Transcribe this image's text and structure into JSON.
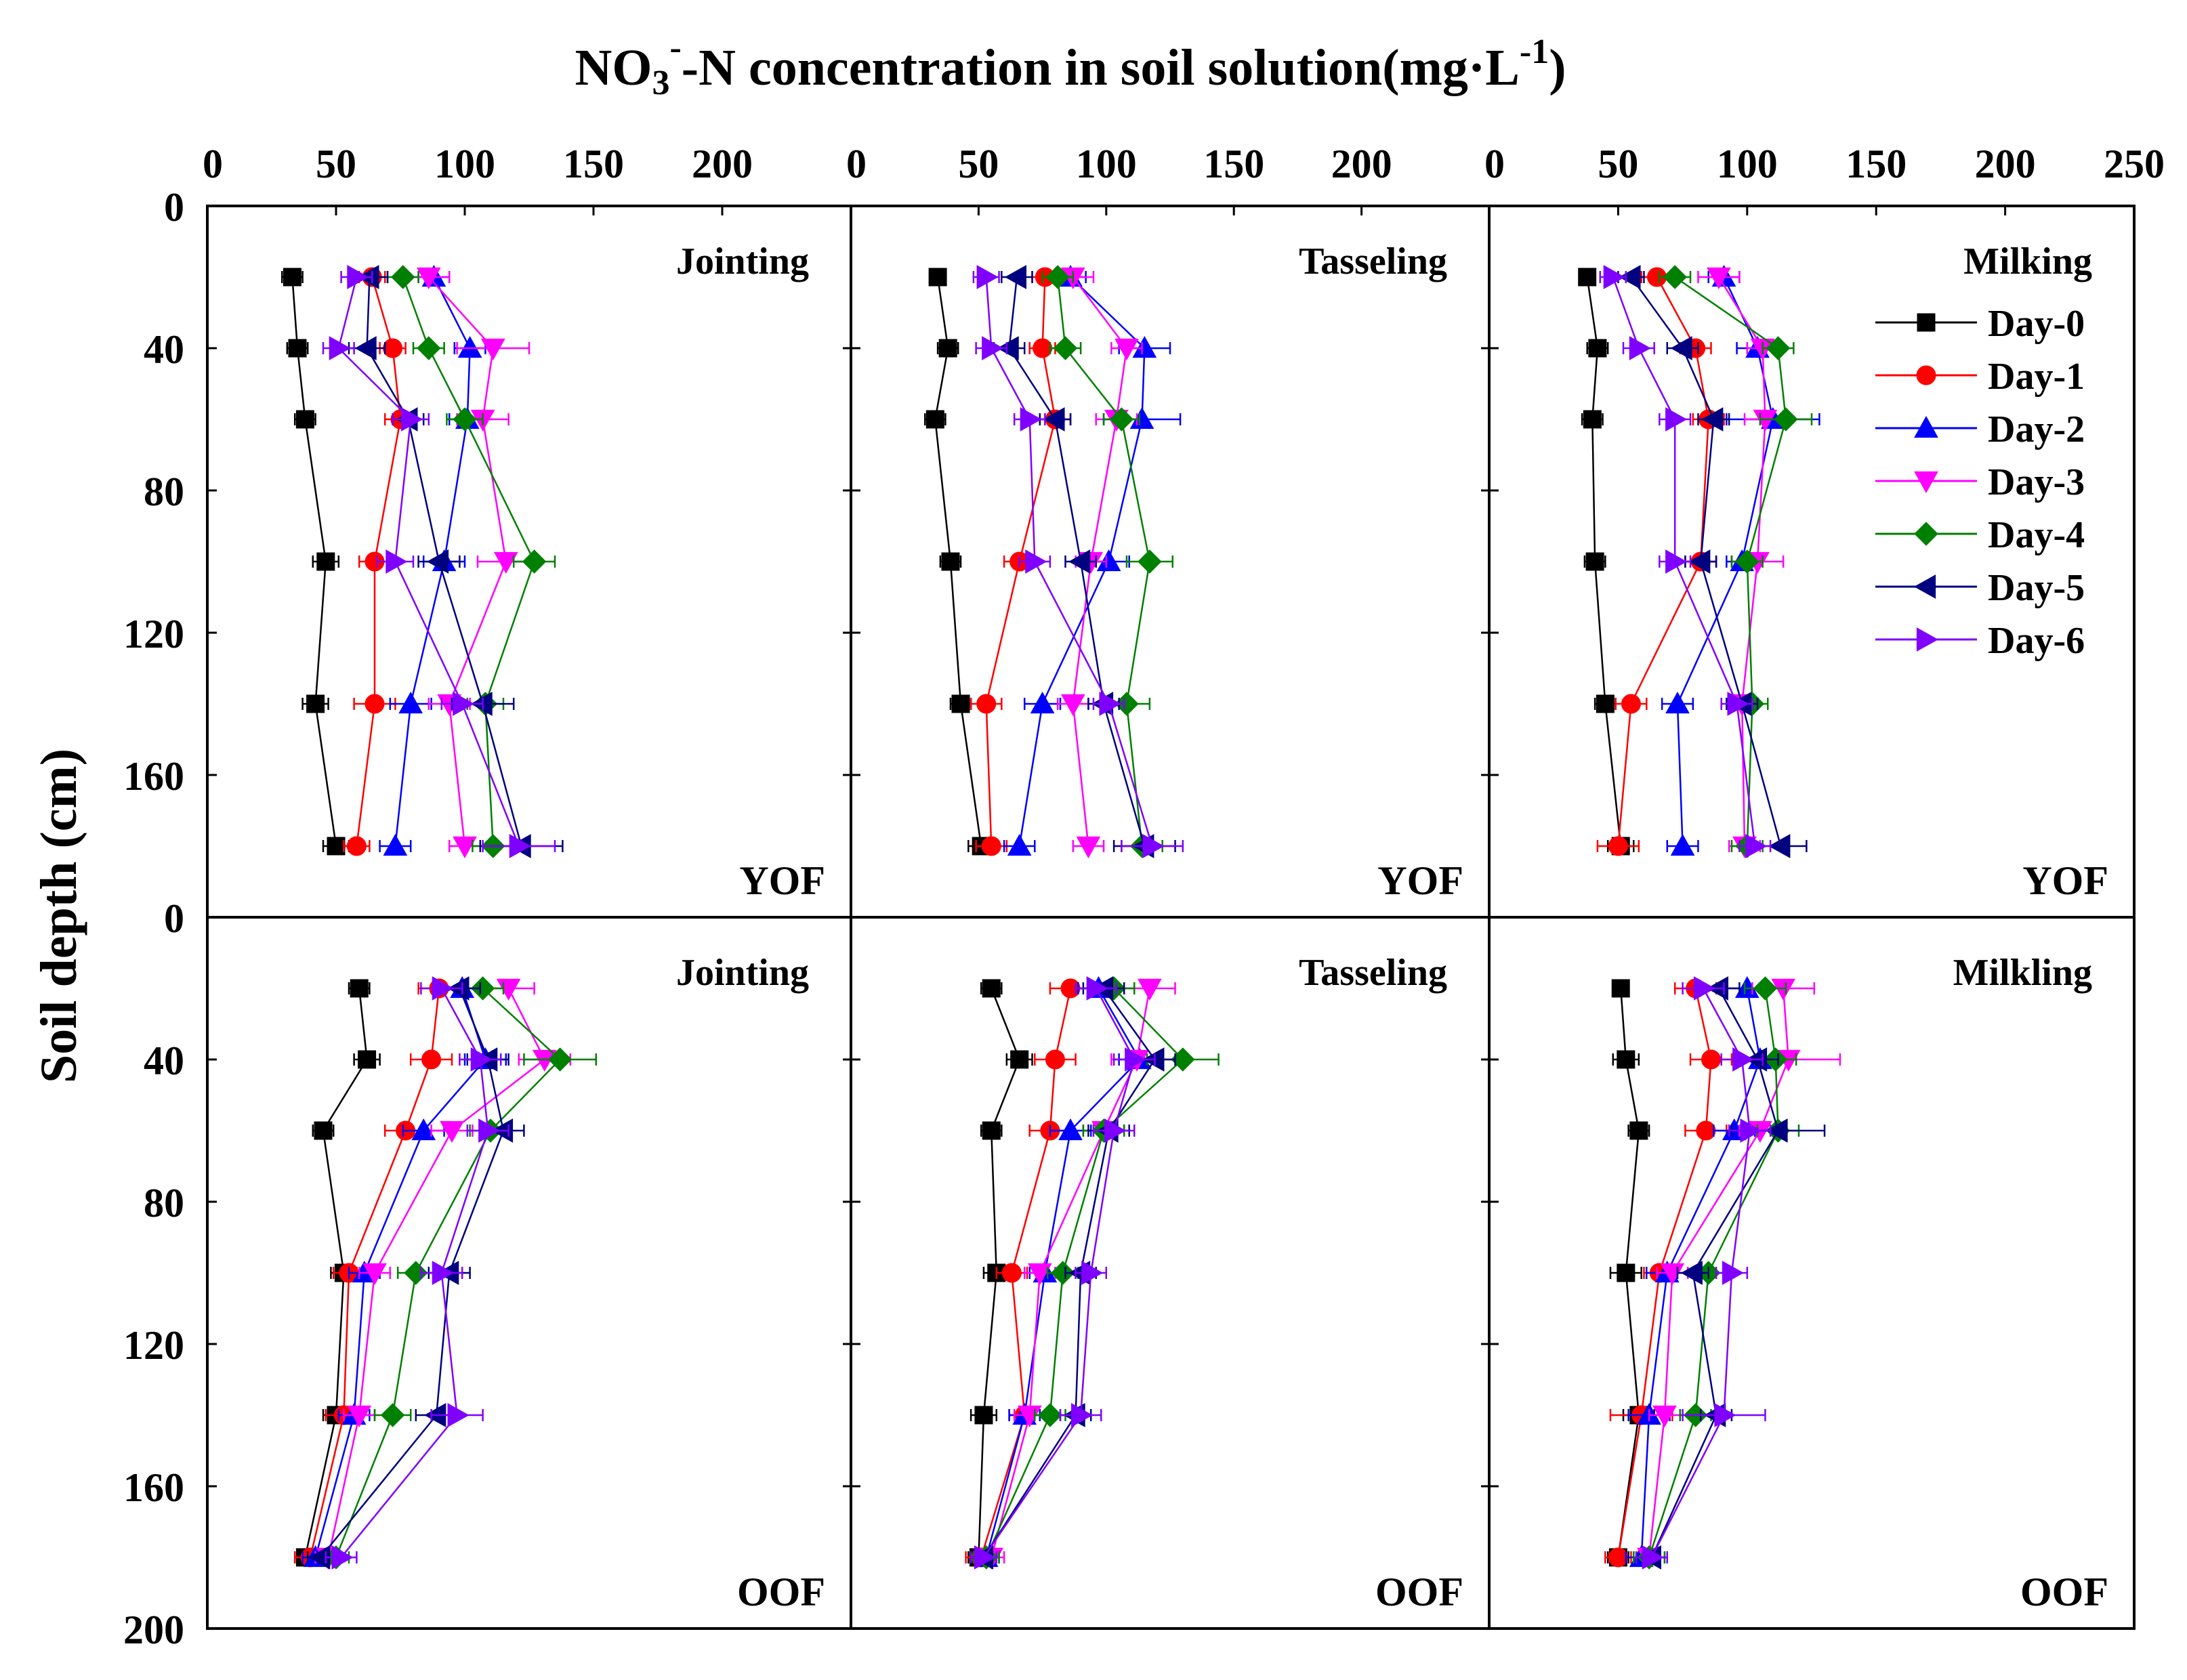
{
  "chart_data": {
    "type": "line",
    "title": "NO3--N concentration in soil solution(mg·L-1)",
    "title_parts": {
      "a": "NO",
      "sub": "3",
      "sup1": "-",
      "b": "-N concentration in soil solution(mg·L",
      "sup2": "-1",
      "c": ")"
    },
    "ylabel": "Soil depth  (cm)",
    "orientation": "x is concentration on top axis, y is depth increasing downward",
    "x_ticks": [
      [
        "0",
        "50",
        "100",
        "150",
        "200"
      ],
      [
        "0",
        "50",
        "100",
        "150",
        "200"
      ],
      [
        "0",
        "50",
        "100",
        "150",
        "200",
        "250"
      ]
    ],
    "xlims": [
      [
        0,
        250
      ],
      [
        0,
        250
      ],
      [
        0,
        250
      ]
    ],
    "y_ticks": [
      "0",
      "40",
      "80",
      "120",
      "160",
      "200"
    ],
    "ylim": [
      0,
      200
    ],
    "depths": [
      20,
      40,
      60,
      100,
      140,
      180
    ],
    "series_names": [
      "Day-0",
      "Day-1",
      "Day-2",
      "Day-3",
      "Day-4",
      "Day-5",
      "Day-6"
    ],
    "series_colors": [
      "#000000",
      "#ff0000",
      "#0000ff",
      "#ff00ff",
      "#008000",
      "#000080",
      "#8000ff"
    ],
    "series_markers": [
      "square",
      "circle",
      "triangle-up",
      "triangle-down",
      "diamond",
      "triangle-left",
      "triangle-right"
    ],
    "panels": [
      {
        "stage": "Jointing",
        "treatment": "YOF",
        "series": [
          {
            "name": "Day-0",
            "values": [
              33,
              35,
              38,
              46,
              42,
              50
            ],
            "errors": [
              4,
              4,
              4,
              5,
              5,
              5
            ]
          },
          {
            "name": "Day-1",
            "values": [
              64,
              72,
              75,
              65,
              65,
              58
            ],
            "errors": [
              5,
              5,
              6,
              6,
              8,
              5
            ]
          },
          {
            "name": "Day-2",
            "values": [
              88,
              102,
              101,
              92,
              79,
              73
            ],
            "errors": [
              6,
              6,
              7,
              8,
              8,
              6
            ]
          },
          {
            "name": "Day-3",
            "values": [
              86,
              111,
              107,
              116,
              94,
              100
            ],
            "errors": [
              8,
              14,
              10,
              11,
              8,
              6
            ]
          },
          {
            "name": "Day-4",
            "values": [
              76,
              86,
              100,
              127,
              108,
              111
            ],
            "errors": [
              6,
              6,
              7,
              8,
              7,
              8
            ]
          },
          {
            "name": "Day-5",
            "values": [
              63,
              62,
              78,
              90,
              107,
              122
            ],
            "errors": [
              7,
              7,
              6,
              8,
              12,
              16
            ]
          },
          {
            "name": "Day-6",
            "values": [
              58,
              51,
              79,
              73,
              99,
              121
            ],
            "errors": [
              6,
              6,
              7,
              7,
              8,
              14
            ]
          }
        ]
      },
      {
        "stage": "Tasseling",
        "treatment": "YOF",
        "series": [
          {
            "name": "Day-0",
            "values": [
              34,
              38,
              33,
              39,
              43,
              51
            ],
            "errors": [
              3,
              4,
              4,
              4,
              4,
              5
            ]
          },
          {
            "name": "Day-1",
            "values": [
              76,
              75,
              80,
              66,
              53,
              55
            ],
            "errors": [
              5,
              5,
              6,
              6,
              6,
              6
            ]
          },
          {
            "name": "Day-2",
            "values": [
              86,
              115,
              114,
              101,
              75,
              66
            ],
            "errors": [
              6,
              10,
              15,
              8,
              7,
              6
            ]
          },
          {
            "name": "Day-3",
            "values": [
              87,
              108,
              104,
              94,
              87,
              93
            ],
            "errors": [
              8,
              6,
              8,
              6,
              6,
              6
            ]
          },
          {
            "name": "Day-4",
            "values": [
              81,
              84,
              106,
              117,
              108,
              114
            ],
            "errors": [
              6,
              6,
              7,
              9,
              9,
              8
            ]
          },
          {
            "name": "Day-5",
            "values": [
              65,
              62,
              80,
              90,
              99,
              115
            ],
            "errors": [
              6,
              6,
              6,
              6,
              6,
              12
            ]
          },
          {
            "name": "Day-6",
            "values": [
              53,
              55,
              70,
              72,
              101,
              118
            ],
            "errors": [
              5,
              6,
              6,
              6,
              6,
              12
            ]
          }
        ]
      },
      {
        "stage": "Milking",
        "treatment": "YOF",
        "series": [
          {
            "name": "Day-0",
            "values": [
              38,
              42,
              40,
              41,
              45,
              51
            ],
            "errors": [
              3,
              4,
              4,
              4,
              4,
              5
            ]
          },
          {
            "name": "Day-1",
            "values": [
              65,
              80,
              85,
              82,
              55,
              50
            ],
            "errors": [
              6,
              6,
              6,
              6,
              6,
              8
            ]
          },
          {
            "name": "Day-2",
            "values": [
              91,
              104,
              110,
              98,
              73,
              75
            ],
            "errors": [
              6,
              8,
              18,
              6,
              6,
              6
            ]
          },
          {
            "name": "Day-3",
            "values": [
              89,
              106,
              107,
              104,
              98,
              99
            ],
            "errors": [
              8,
              6,
              8,
              10,
              6,
              6
            ]
          },
          {
            "name": "Day-4",
            "values": [
              72,
              112,
              115,
              100,
              102,
              100
            ],
            "errors": [
              6,
              6,
              10,
              6,
              6,
              6
            ]
          },
          {
            "name": "Day-5",
            "values": [
              55,
              75,
              87,
              82,
              98,
              113
            ],
            "errors": [
              5,
              6,
              6,
              6,
              6,
              10
            ]
          },
          {
            "name": "Day-6",
            "values": [
              48,
              58,
              72,
              72,
              96,
              103
            ],
            "errors": [
              5,
              6,
              6,
              6,
              6,
              6
            ]
          }
        ]
      },
      {
        "stage": "Jointing",
        "treatment": "OOF",
        "series": [
          {
            "name": "Day-0",
            "values": [
              59,
              62,
              45,
              53,
              50,
              38
            ],
            "errors": [
              4,
              5,
              4,
              5,
              5,
              4
            ]
          },
          {
            "name": "Day-1",
            "values": [
              90,
              87,
              77,
              55,
              53,
              40
            ],
            "errors": [
              8,
              8,
              8,
              6,
              7,
              6
            ]
          },
          {
            "name": "Day-2",
            "values": [
              99,
              108,
              84,
              61,
              57,
              42
            ],
            "errors": [
              8,
              8,
              8,
              6,
              6,
              5
            ]
          },
          {
            "name": "Day-3",
            "values": [
              117,
              131,
              95,
              65,
              59,
              47
            ],
            "errors": [
              10,
              10,
              8,
              6,
              6,
              5
            ]
          },
          {
            "name": "Day-4",
            "values": [
              107,
              137,
              110,
              81,
              72,
              50
            ],
            "errors": [
              8,
              14,
              8,
              7,
              7,
              5
            ]
          },
          {
            "name": "Day-5",
            "values": [
              98,
              109,
              115,
              94,
              89,
              44
            ],
            "errors": [
              8,
              8,
              8,
              8,
              8,
              5
            ]
          },
          {
            "name": "Day-6",
            "values": [
              91,
              106,
              109,
              91,
              97,
              52
            ],
            "errors": [
              8,
              8,
              8,
              8,
              10,
              6
            ]
          }
        ]
      },
      {
        "stage": "Tasseling",
        "treatment": "OOF",
        "series": [
          {
            "name": "Day-0",
            "values": [
              55,
              66,
              55,
              57,
              52,
              50
            ],
            "errors": [
              4,
              5,
              4,
              5,
              5,
              4
            ]
          },
          {
            "name": "Day-1",
            "values": [
              86,
              80,
              78,
              63,
              68,
              51
            ],
            "errors": [
              8,
              8,
              8,
              6,
              6,
              6
            ]
          },
          {
            "name": "Day-2",
            "values": [
              97,
              113,
              86,
              76,
              68,
              53
            ],
            "errors": [
              8,
              8,
              8,
              6,
              6,
              5
            ]
          },
          {
            "name": "Day-3",
            "values": [
              117,
              112,
              99,
              74,
              70,
              55
            ],
            "errors": [
              10,
              10,
              8,
              6,
              6,
              5
            ]
          },
          {
            "name": "Day-4",
            "values": [
              103,
              130,
              99,
              83,
              78,
              53
            ],
            "errors": [
              8,
              14,
              8,
              6,
              6,
              5
            ]
          },
          {
            "name": "Day-5",
            "values": [
              99,
              119,
              101,
              90,
              88,
              52
            ],
            "errors": [
              8,
              8,
              8,
              6,
              6,
              5
            ]
          },
          {
            "name": "Day-6",
            "values": [
              96,
              111,
              103,
              94,
              90,
              52
            ],
            "errors": [
              8,
              8,
              8,
              6,
              8,
              5
            ]
          }
        ]
      },
      {
        "stage": "Milkling",
        "treatment": "OOF",
        "series": [
          {
            "name": "Day-0",
            "values": [
              51,
              53,
              58,
              53,
              58,
              50
            ],
            "errors": [
              3,
              5,
              4,
              6,
              6,
              4
            ]
          },
          {
            "name": "Day-1",
            "values": [
              80,
              86,
              84,
              66,
              59,
              50
            ],
            "errors": [
              8,
              8,
              8,
              6,
              12,
              5
            ]
          },
          {
            "name": "Day-2",
            "values": [
              100,
              105,
              95,
              69,
              62,
              59
            ],
            "errors": [
              8,
              8,
              8,
              8,
              8,
              6
            ]
          },
          {
            "name": "Day-3",
            "values": [
              114,
              116,
              105,
              71,
              68,
              62
            ],
            "errors": [
              12,
              20,
              8,
              6,
              6,
              6
            ]
          },
          {
            "name": "Day-4",
            "values": [
              107,
              111,
              112,
              85,
              80,
              62
            ],
            "errors": [
              8,
              8,
              8,
              6,
              6,
              6
            ]
          },
          {
            "name": "Day-5",
            "values": [
              89,
              104,
              112,
              79,
              88,
              63
            ],
            "errors": [
              8,
              8,
              18,
              6,
              6,
              6
            ]
          },
          {
            "name": "Day-6",
            "values": [
              83,
              98,
              101,
              94,
              91,
              63
            ],
            "errors": [
              8,
              8,
              8,
              6,
              16,
              6
            ]
          }
        ]
      }
    ],
    "legend": {
      "panel": 2,
      "placement": "right side of top-right panel"
    }
  }
}
